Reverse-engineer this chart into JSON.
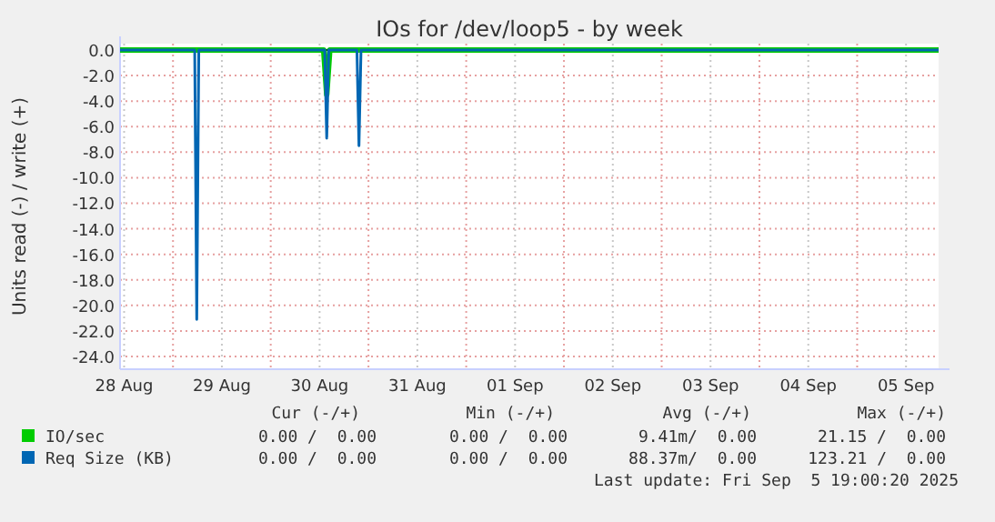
{
  "chart_data": {
    "type": "line",
    "title": "IOs for /dev/loop5 - by week",
    "ylabel": "Units read (-) / write (+)",
    "xlim": [
      "2025-08-28T11:00",
      "2025-09-05T20:00"
    ],
    "xticks": [
      {
        "value": "2025-08-28T12:00",
        "label": "28 Aug"
      },
      {
        "value": "2025-08-29T00:00",
        "label": null
      },
      {
        "value": "2025-08-29T12:00",
        "label": "29 Aug"
      },
      {
        "value": "2025-08-30T00:00",
        "label": null
      },
      {
        "value": "2025-08-30T12:00",
        "label": "30 Aug"
      },
      {
        "value": "2025-08-31T00:00",
        "label": null
      },
      {
        "value": "2025-08-31T12:00",
        "label": "31 Aug"
      },
      {
        "value": "2025-09-01T00:00",
        "label": null
      },
      {
        "value": "2025-09-01T12:00",
        "label": "01 Sep"
      },
      {
        "value": "2025-09-02T00:00",
        "label": null
      },
      {
        "value": "2025-09-02T12:00",
        "label": "02 Sep"
      },
      {
        "value": "2025-09-03T00:00",
        "label": null
      },
      {
        "value": "2025-09-03T12:00",
        "label": "03 Sep"
      },
      {
        "value": "2025-09-04T00:00",
        "label": null
      },
      {
        "value": "2025-09-04T12:00",
        "label": "04 Sep"
      },
      {
        "value": "2025-09-05T00:00",
        "label": null
      },
      {
        "value": "2025-09-05T12:00",
        "label": "05 Sep"
      }
    ],
    "ylim": [
      -25,
      0.5
    ],
    "yticks": [
      {
        "value": 0,
        "label": "0.0"
      },
      {
        "value": -2,
        "label": "-2.0"
      },
      {
        "value": -4,
        "label": "-4.0"
      },
      {
        "value": -6,
        "label": "-6.0"
      },
      {
        "value": -8,
        "label": "-8.0"
      },
      {
        "value": -10,
        "label": "-10.0"
      },
      {
        "value": -12,
        "label": "-12.0"
      },
      {
        "value": -14,
        "label": "-14.0"
      },
      {
        "value": -16,
        "label": "-16.0"
      },
      {
        "value": -18,
        "label": "-18.0"
      },
      {
        "value": -20,
        "label": "-20.0"
      },
      {
        "value": -22,
        "label": "-22.0"
      },
      {
        "value": -24,
        "label": "-24.0"
      }
    ],
    "grid": true,
    "legend": "bottom",
    "series": [
      {
        "name": "IO/sec",
        "color": "#00cc00",
        "x": [
          "2025-08-28T11:00",
          "2025-08-30T13:00",
          "2025-08-30T13:45",
          "2025-08-30T14:30",
          "2025-09-05T20:00"
        ],
        "values": [
          0,
          0,
          -3.5,
          0,
          0
        ]
      },
      {
        "name": "Req Size (KB)",
        "color": "#0066b3",
        "x": [
          "2025-08-28T11:00",
          "2025-08-29T05:20",
          "2025-08-29T05:50",
          "2025-08-29T06:20",
          "2025-08-30T13:15",
          "2025-08-30T13:45",
          "2025-08-30T14:15",
          "2025-08-30T21:10",
          "2025-08-30T21:40",
          "2025-08-30T22:10",
          "2025-09-05T20:00"
        ],
        "values": [
          0,
          0,
          -21.1,
          0,
          0,
          -6.9,
          0,
          0,
          -7.5,
          0,
          0
        ]
      }
    ],
    "annotations": [
      "Cur (-/+)",
      "Min (-/+)",
      "Avg (-/+)",
      "Max (-/+)",
      "0.00 /  0.00",
      "0.00 /  0.00",
      "9.41m/  0.00",
      "21.15 /  0.00",
      "0.00 /  0.00",
      "0.00 /  0.00",
      "88.37m/  0.00",
      "123.21 /  0.00",
      "Last update: Fri Sep  5 19:00:20 2025"
    ]
  }
}
